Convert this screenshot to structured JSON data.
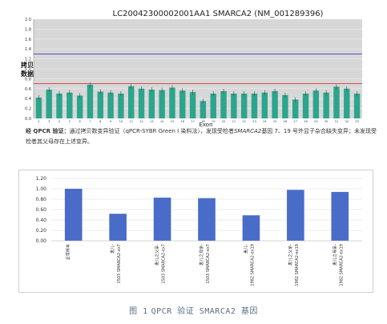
{
  "figure": {
    "caption_num": "图 1",
    "caption_text": "QPCR 验证 SMARCA2 基因"
  },
  "note": {
    "prefix": "经 QPCR 验证：",
    "text_1": "通过拷贝数变异验证（qPCR-SYBR Green I 染料法），发现受检者",
    "gene": "SMARCA2",
    "text_2": "基因 7、19 号外显子杂合缺失变异；未发现受检者其父母存在上述变异。"
  },
  "chart_data": [
    {
      "type": "bar",
      "title": "LC20042300002001AA1 SMARCA2 (NM_001289396)",
      "xlabel": "Exon",
      "ylabel": "拷贝数据",
      "ylim": [
        0,
        2
      ],
      "yticks": [
        0,
        0.2,
        0.4,
        0.6,
        0.8,
        1.0,
        1.2,
        1.4,
        1.6,
        1.8,
        2.0
      ],
      "categories": [
        "2",
        "3",
        "4",
        "5",
        "6",
        "7",
        "8",
        "9",
        "10",
        "11",
        "12",
        "13",
        "14",
        "15",
        "16",
        "17",
        "18",
        "19",
        "20",
        "21",
        "22",
        "23",
        "24",
        "25",
        "26",
        "27",
        "28",
        "29",
        "30",
        "31",
        "32",
        "33"
      ],
      "values": [
        0.42,
        0.58,
        0.5,
        0.52,
        0.46,
        0.68,
        0.54,
        0.52,
        0.5,
        0.65,
        0.6,
        0.58,
        0.57,
        0.62,
        0.56,
        0.53,
        0.35,
        0.5,
        0.55,
        0.5,
        0.5,
        0.5,
        0.52,
        0.55,
        0.47,
        0.38,
        0.5,
        0.56,
        0.52,
        0.64,
        0.6,
        0.5
      ],
      "reference_lines": [
        1.3,
        0.7
      ],
      "reference_colors": [
        "#3b3bd6",
        "#d43b3b"
      ],
      "bar_color": "#2ca58d",
      "background": "#d7d7d7",
      "grid": true
    },
    {
      "type": "bar",
      "categories": [
        "正常样本",
        "患儿-1503 SMARCA2-ex7",
        "患儿之父亲-1503 SMARCA2-ex7",
        "患儿之母亲-1503 SMARCA2-ex7",
        "患儿-1982 SMARCA2-ex19",
        "患儿之父亲-1982 SMARCA2-ex19",
        "患儿之母亲-1982 SMARCA2-ex19"
      ],
      "tick_labels": [
        [
          "正常样本"
        ],
        [
          "患儿-",
          "1503 SMARCA2-ex7"
        ],
        [
          "患儿之父亲-",
          "1503 SMARCA2-ex7"
        ],
        [
          "患儿之母亲-",
          "1503 SMARCA2-ex7"
        ],
        [
          "患儿-",
          "1982 SMARCA2-ex19"
        ],
        [
          "患儿之父亲-",
          "1982 SMARCA2-ex19"
        ],
        [
          "患儿之母亲-",
          "1982 SMARCA2-ex19"
        ]
      ],
      "values": [
        1.0,
        0.52,
        0.83,
        0.82,
        0.49,
        0.98,
        0.94
      ],
      "ylim": [
        0,
        1.2
      ],
      "yticks": [
        "0.00",
        "0.20",
        "0.40",
        "0.60",
        "0.80",
        "1.00",
        "1.20"
      ],
      "bar_color": "#4a6cc9",
      "grid": true
    }
  ]
}
